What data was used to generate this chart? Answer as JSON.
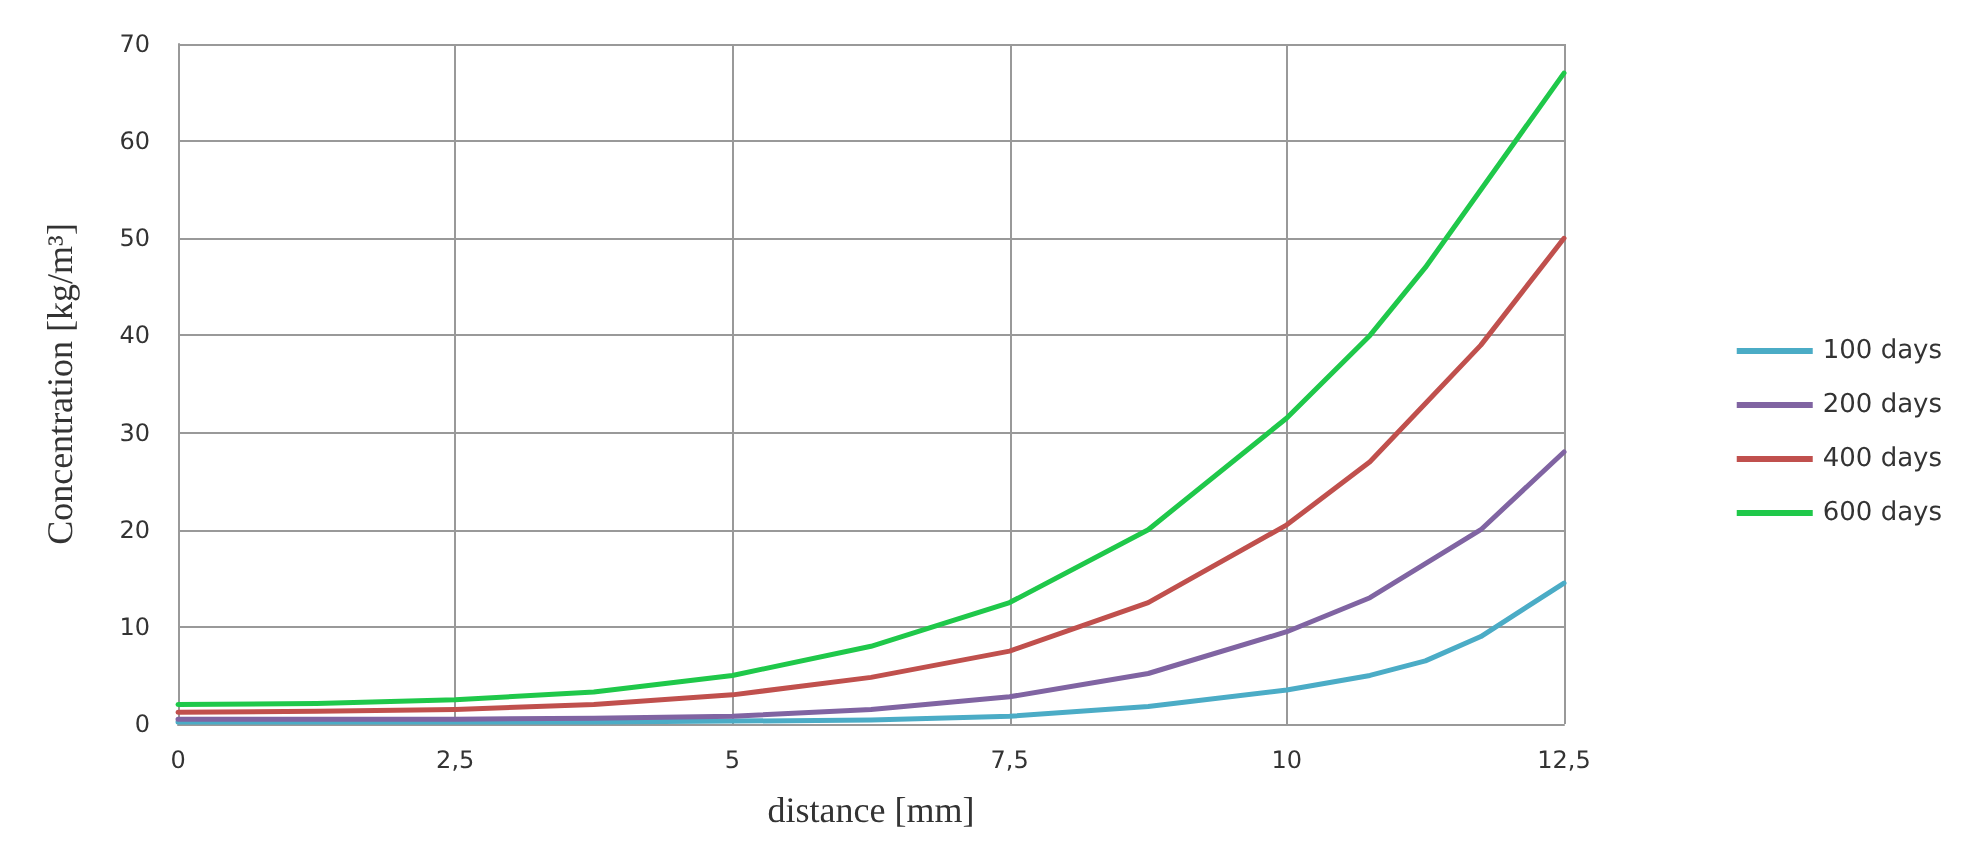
{
  "chart_data": {
    "type": "line",
    "xlabel": "distance [mm]",
    "ylabel": "Concentration [kg/m³]",
    "xlim": [
      0,
      12.5
    ],
    "xticks": [
      0,
      {
        "value": 2.5,
        "label": "2,5"
      },
      5,
      {
        "value": 7.5,
        "label": "7,5"
      },
      10,
      {
        "value": 12.5,
        "label": "12,5"
      }
    ],
    "ylim": [
      0,
      70
    ],
    "yticks": [
      0,
      10,
      20,
      30,
      40,
      50,
      60,
      70
    ],
    "x": [
      0,
      1.25,
      2.5,
      3.75,
      5,
      6.25,
      7.5,
      8.75,
      10,
      10.75,
      11.25,
      11.75,
      12.5
    ],
    "series": [
      {
        "name": "100 days",
        "color": "#4bacc6",
        "values": [
          0.2,
          0.2,
          0.2,
          0.2,
          0.3,
          0.4,
          0.8,
          1.8,
          3.5,
          5,
          6.5,
          9,
          14.5
        ]
      },
      {
        "name": "200 days",
        "color": "#8064a2",
        "values": [
          0.5,
          0.5,
          0.5,
          0.6,
          0.8,
          1.5,
          2.8,
          5.2,
          9.5,
          13,
          16.5,
          20,
          28
        ]
      },
      {
        "name": "400 days",
        "color": "#c0504d",
        "values": [
          1.2,
          1.3,
          1.5,
          2,
          3,
          4.8,
          7.5,
          12.5,
          20.5,
          27,
          33,
          39,
          50
        ]
      },
      {
        "name": "600 days",
        "color": "#1fc84a",
        "values": [
          2,
          2.1,
          2.5,
          3.3,
          5,
          8,
          12.5,
          20,
          31.5,
          40,
          47,
          55,
          67
        ]
      }
    ],
    "grid": true,
    "legend": "right",
    "marker": "none",
    "line_style": "solid"
  }
}
